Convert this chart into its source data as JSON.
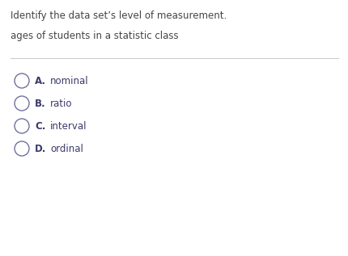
{
  "title_line1": "Identify the data set’s level of measurement.",
  "title_line2": "ages of students in a statistic class",
  "options": [
    {
      "letter": "A.",
      "text": "nominal"
    },
    {
      "letter": "B.",
      "text": "ratio"
    },
    {
      "letter": "C.",
      "text": "interval"
    },
    {
      "letter": "D.",
      "text": "ordinal"
    }
  ],
  "bg_color": "#ffffff",
  "text_color": "#3a3a6a",
  "title_color": "#444444",
  "circle_color": "#7070a0",
  "line_color": "#cccccc",
  "title_fontsize": 8.5,
  "option_fontsize": 8.5,
  "fig_width": 4.31,
  "fig_height": 3.17,
  "dpi": 100
}
